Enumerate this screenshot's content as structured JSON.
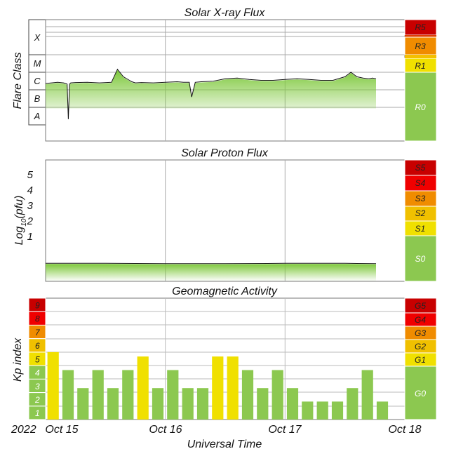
{
  "chart_data": [
    {
      "type": "line",
      "title": "Solar X-ray Flux",
      "ylabel": "Flare Class",
      "y_scale": "log",
      "y_unit": "W/m^2",
      "ylim": [
        1e-09,
        0.001
      ],
      "class_labels": [
        "A",
        "B",
        "C",
        "M",
        "X"
      ],
      "x_unit": "days since 2022-10-15 00:00 UT",
      "series": [
        {
          "x": [
            0.0,
            0.05,
            0.1,
            0.15,
            0.18,
            0.19,
            0.2,
            0.21,
            0.25,
            0.35,
            0.45,
            0.55,
            0.6,
            0.65,
            0.7,
            0.72,
            0.75,
            0.8,
            0.9,
            1.0,
            1.1,
            1.15,
            1.2,
            1.22,
            1.25,
            1.3,
            1.4,
            1.5,
            1.6,
            1.7,
            1.8,
            1.9,
            2.0,
            2.1,
            2.2,
            2.3,
            2.4,
            2.5,
            2.55,
            2.6,
            2.65,
            2.7,
            2.73,
            2.76
          ],
          "values": [
            7e-07,
            7.5e-07,
            8e-07,
            7.5e-07,
            6.5e-07,
            1.2e-08,
            6.5e-07,
            7.5e-07,
            7.8e-07,
            8e-07,
            7.5e-07,
            8e-07,
            3.5e-06,
            1.5e-06,
            1e-06,
            8.5e-07,
            7.5e-07,
            7.8e-07,
            7.5e-07,
            8e-07,
            8.5e-07,
            8e-07,
            8e-07,
            1.5e-07,
            8e-07,
            8.5e-07,
            9e-07,
            1.2e-06,
            1.3e-06,
            1.1e-06,
            1e-06,
            1e-06,
            1.1e-06,
            1.2e-06,
            1.1e-06,
            1e-06,
            1e-06,
            1.5e-06,
            2.5e-06,
            1.5e-06,
            1.3e-06,
            1.2e-06,
            1.3e-06,
            1.2e-06
          ]
        }
      ],
      "scale_labels": [
        "R5",
        "R3",
        "R1",
        "R0"
      ],
      "scale_colors": [
        "#c80000",
        "#f08c00",
        "#f0e000",
        "#8cc850"
      ]
    },
    {
      "type": "line",
      "title": "Solar Proton Flux",
      "ylabel": "Log10(pfu)",
      "ylabel_main": "Log",
      "ylabel_sub": "10",
      "ylabel_rest": "(pfu)",
      "ylim": [
        -1.4,
        6
      ],
      "yticks": [
        1,
        2,
        3,
        4,
        5
      ],
      "x_unit": "days since 2022-10-15 00:00 UT",
      "series": [
        {
          "x": [
            0.0,
            0.5,
            1.0,
            1.5,
            2.0,
            2.5,
            2.76
          ],
          "values": [
            -0.3,
            -0.3,
            -0.32,
            -0.32,
            -0.3,
            -0.3,
            -0.32
          ]
        }
      ],
      "scale_labels": [
        "S5",
        "S4",
        "S3",
        "S2",
        "S1",
        "S0"
      ]
    },
    {
      "type": "bar",
      "title": "Geomagnetic Activity",
      "ylabel": "Kp index",
      "ylim": [
        0,
        9
      ],
      "yticks": [
        1,
        2,
        3,
        4,
        5,
        6,
        7,
        8,
        9
      ],
      "bar_width_hours": 3,
      "x_unit": "hours since 2022-10-15 00:00 UT",
      "x": [
        0,
        3,
        6,
        9,
        12,
        15,
        18,
        21,
        24,
        27,
        30,
        33,
        36,
        39,
        42,
        45,
        48,
        51,
        54,
        57,
        60,
        63,
        66,
        69
      ],
      "values": [
        5,
        3.67,
        2.33,
        3.67,
        2.33,
        3.67,
        4.67,
        2.33,
        3.67,
        2.33,
        2.33,
        4.67,
        4.67,
        3.67,
        2.33,
        3.67,
        2.33,
        1.33,
        1.33,
        1.33,
        2.33,
        3.67,
        1.33,
        0
      ],
      "scale_labels": [
        "G5",
        "G4",
        "G3",
        "G2",
        "G1",
        "G0"
      ],
      "kp_colors": [
        "#8cc850",
        "#8cc850",
        "#8cc850",
        "#8cc850",
        "#f0e000",
        "#f0c000",
        "#f08c00",
        "#f00000",
        "#c80000"
      ]
    }
  ],
  "x_axis": {
    "year_label": "2022",
    "tick_labels": [
      "Oct 15",
      "Oct 16",
      "Oct 17",
      "Oct 18"
    ],
    "xlabel": "Universal Time",
    "xlim_days": [
      0,
      3
    ]
  }
}
